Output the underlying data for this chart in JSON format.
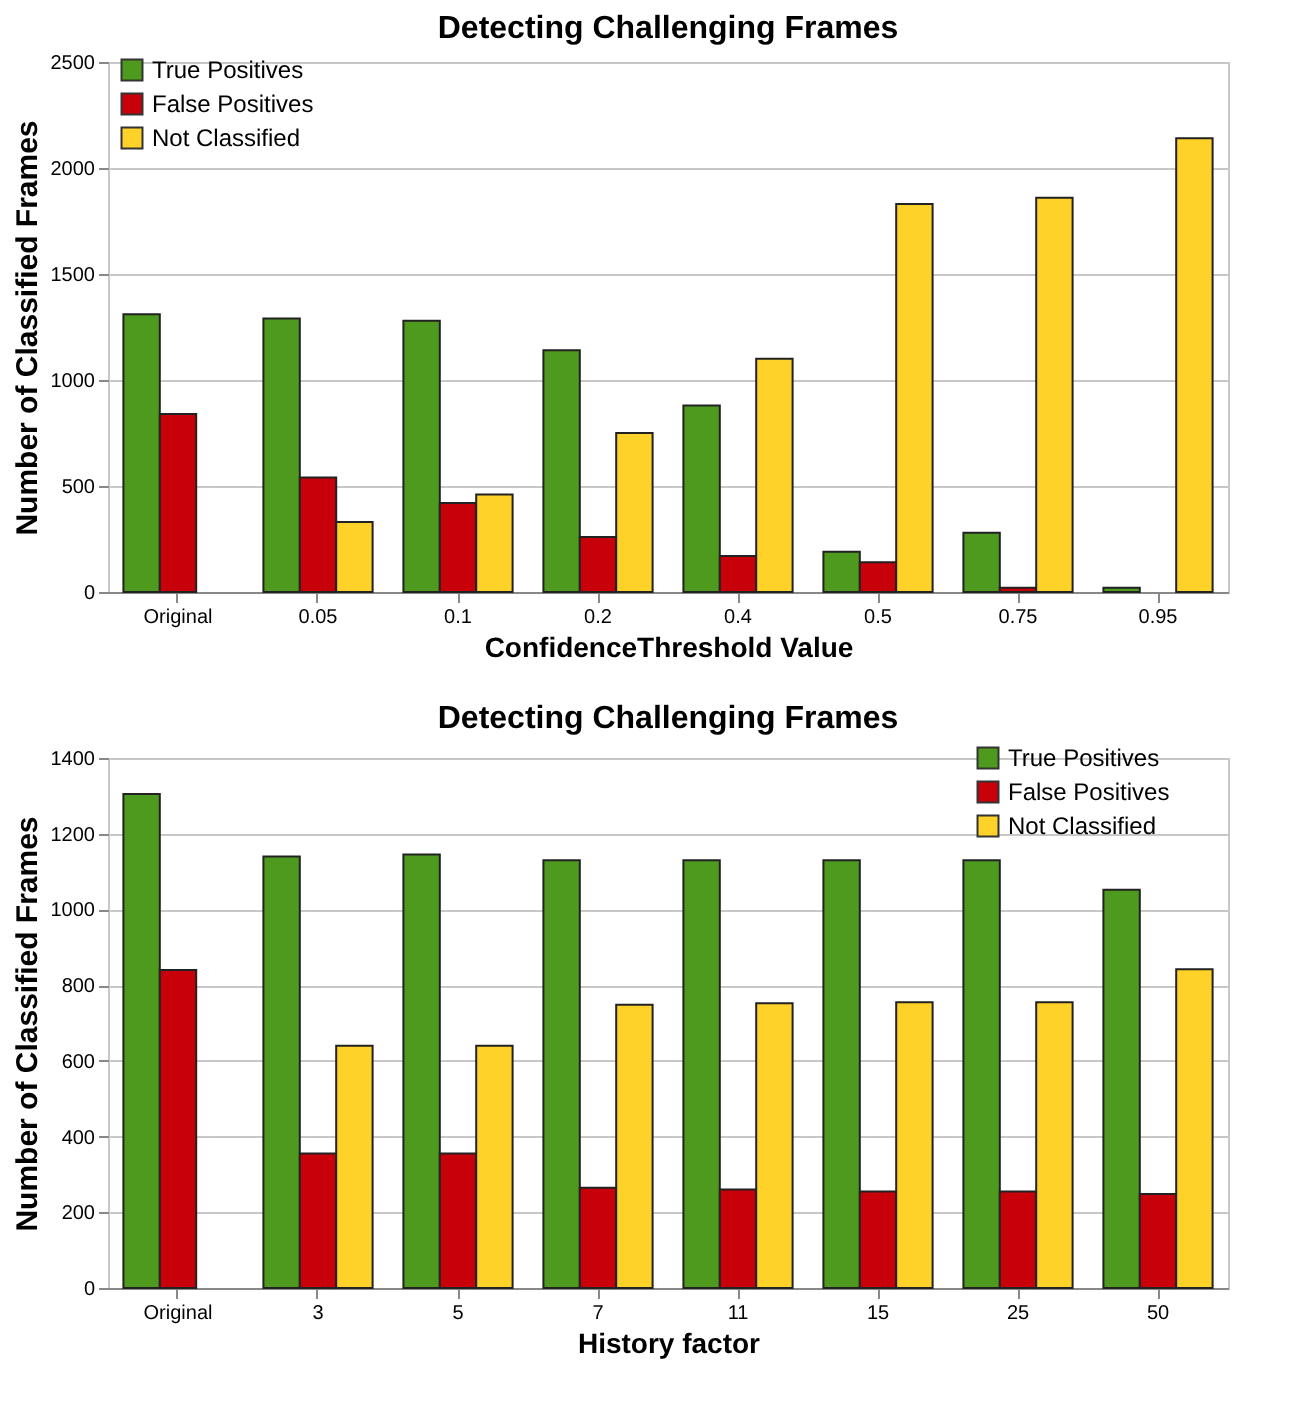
{
  "chart_data": [
    {
      "type": "bar",
      "title": "Detecting Challenging Frames",
      "xlabel": "ConfidenceThreshold Value",
      "ylabel": "Number of Classified Frames",
      "categories": [
        "Original",
        "0.05",
        "0.1",
        "0.2",
        "0.4",
        "0.5",
        "0.75",
        "0.95"
      ],
      "series": [
        {
          "name": "True Positives",
          "color": "#4e9a1e",
          "values": [
            1310,
            1290,
            1280,
            1140,
            880,
            190,
            280,
            20
          ]
        },
        {
          "name": "False Positives",
          "color": "#c8000a",
          "values": [
            840,
            540,
            420,
            260,
            170,
            140,
            20,
            null
          ]
        },
        {
          "name": "Not Classified",
          "color": "#ffd22a",
          "values": [
            null,
            330,
            460,
            750,
            1100,
            1830,
            1860,
            2140
          ]
        }
      ],
      "ylim": [
        0,
        2500
      ],
      "yticks": [
        0,
        500,
        1000,
        1500,
        2000,
        2500
      ],
      "grid": "y",
      "legend": "top left"
    },
    {
      "type": "bar",
      "title": "Detecting Challenging Frames",
      "xlabel": "History factor",
      "ylabel": "Number of Classified Frames",
      "categories": [
        "Original",
        "3",
        "5",
        "7",
        "11",
        "15",
        "25",
        "50"
      ],
      "series": [
        {
          "name": "True Positives",
          "color": "#4e9a1e",
          "values": [
            1305,
            1140,
            1145,
            1130,
            1130,
            1130,
            1130,
            1052
          ]
        },
        {
          "name": "False Positives",
          "color": "#c8000a",
          "values": [
            840,
            355,
            355,
            265,
            260,
            255,
            255,
            248
          ]
        },
        {
          "name": "Not Classified",
          "color": "#ffd22a",
          "values": [
            null,
            640,
            640,
            748,
            752,
            755,
            755,
            842
          ]
        }
      ],
      "ylim": [
        0,
        1400
      ],
      "yticks": [
        0,
        200,
        400,
        600,
        800,
        1000,
        1200,
        1400
      ],
      "grid": "y",
      "legend": "top right"
    }
  ]
}
